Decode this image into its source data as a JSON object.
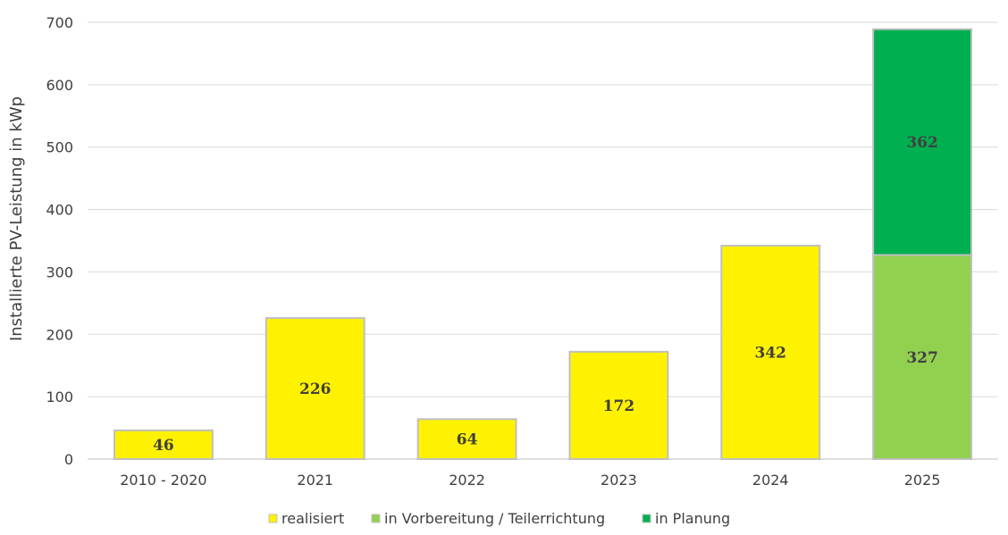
{
  "chart_data": {
    "type": "bar",
    "stacked": true,
    "title": "",
    "xlabel": "",
    "ylabel": "Installierte PV-Leistung in kWp",
    "ylim": [
      0,
      700
    ],
    "yticks": [
      "0",
      "100",
      "200",
      "300",
      "400",
      "500",
      "600",
      "700"
    ],
    "grid": true,
    "legend_position": "bottom",
    "categories": [
      "2010 - 2020",
      "2021",
      "2022",
      "2023",
      "2024",
      "2025"
    ],
    "series": [
      {
        "name": "realisiert",
        "color": "#FFF200",
        "values": [
          46,
          226,
          64,
          172,
          342,
          0
        ]
      },
      {
        "name": "in Vorbereitung / Teilerrichtung",
        "color": "#92D050",
        "values": [
          0,
          0,
          0,
          0,
          0,
          327
        ]
      },
      {
        "name": "in Planung",
        "color": "#00B050",
        "values": [
          0,
          0,
          0,
          0,
          0,
          362
        ]
      }
    ]
  }
}
